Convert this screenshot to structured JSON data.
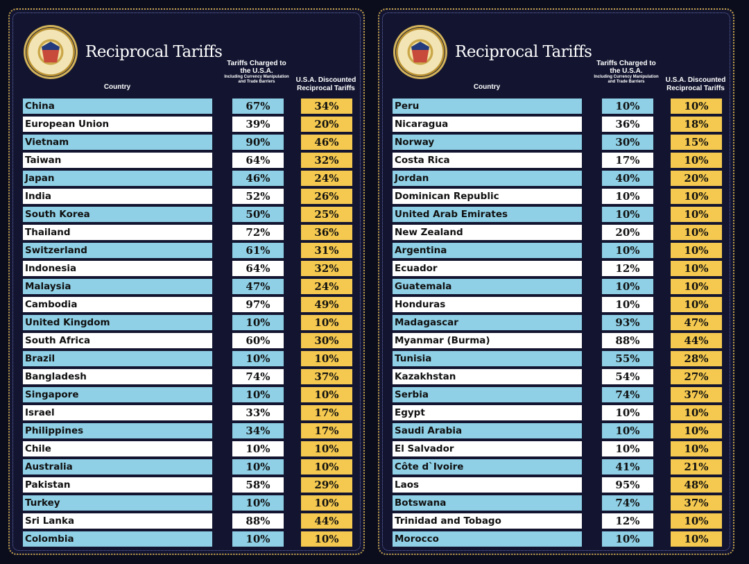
{
  "colors": {
    "background": "#0b0d1c",
    "panel": "#131530",
    "gold_border": "#c9a648",
    "blue_row": "#8fd0e6",
    "white_row": "#ffffff",
    "discount_cell": "#f5c94f"
  },
  "panels": [
    {
      "title": "Reciprocal Tariffs",
      "seal_icon": "presidential-seal",
      "headers": {
        "country": "Country",
        "charged_main": "Tariffs Charged to the U.S.A.",
        "charged_sub": "Including Currency Manipulation and Trade Barriers",
        "discounted": "U.S.A. Discounted Reciprocal Tariffs"
      },
      "rows": [
        {
          "country": "China",
          "charged": "67%",
          "discounted": "34%"
        },
        {
          "country": "European Union",
          "charged": "39%",
          "discounted": "20%"
        },
        {
          "country": "Vietnam",
          "charged": "90%",
          "discounted": "46%"
        },
        {
          "country": "Taiwan",
          "charged": "64%",
          "discounted": "32%"
        },
        {
          "country": "Japan",
          "charged": "46%",
          "discounted": "24%"
        },
        {
          "country": "India",
          "charged": "52%",
          "discounted": "26%"
        },
        {
          "country": "South Korea",
          "charged": "50%",
          "discounted": "25%"
        },
        {
          "country": "Thailand",
          "charged": "72%",
          "discounted": "36%"
        },
        {
          "country": "Switzerland",
          "charged": "61%",
          "discounted": "31%"
        },
        {
          "country": "Indonesia",
          "charged": "64%",
          "discounted": "32%"
        },
        {
          "country": "Malaysia",
          "charged": "47%",
          "discounted": "24%"
        },
        {
          "country": "Cambodia",
          "charged": "97%",
          "discounted": "49%"
        },
        {
          "country": "United Kingdom",
          "charged": "10%",
          "discounted": "10%"
        },
        {
          "country": "South Africa",
          "charged": "60%",
          "discounted": "30%"
        },
        {
          "country": "Brazil",
          "charged": "10%",
          "discounted": "10%"
        },
        {
          "country": "Bangladesh",
          "charged": "74%",
          "discounted": "37%"
        },
        {
          "country": "Singapore",
          "charged": "10%",
          "discounted": "10%"
        },
        {
          "country": "Israel",
          "charged": "33%",
          "discounted": "17%"
        },
        {
          "country": "Philippines",
          "charged": "34%",
          "discounted": "17%"
        },
        {
          "country": "Chile",
          "charged": "10%",
          "discounted": "10%"
        },
        {
          "country": "Australia",
          "charged": "10%",
          "discounted": "10%"
        },
        {
          "country": "Pakistan",
          "charged": "58%",
          "discounted": "29%"
        },
        {
          "country": "Turkey",
          "charged": "10%",
          "discounted": "10%"
        },
        {
          "country": "Sri Lanka",
          "charged": "88%",
          "discounted": "44%"
        },
        {
          "country": "Colombia",
          "charged": "10%",
          "discounted": "10%"
        }
      ]
    },
    {
      "title": "Reciprocal Tariffs",
      "seal_icon": "presidential-seal",
      "headers": {
        "country": "Country",
        "charged_main": "Tariffs Charged to the U.S.A.",
        "charged_sub": "Including Currency Manipulation and Trade Barriers",
        "discounted": "U.S.A. Discounted Reciprocal Tariffs"
      },
      "rows": [
        {
          "country": "Peru",
          "charged": "10%",
          "discounted": "10%"
        },
        {
          "country": "Nicaragua",
          "charged": "36%",
          "discounted": "18%"
        },
        {
          "country": "Norway",
          "charged": "30%",
          "discounted": "15%"
        },
        {
          "country": "Costa Rica",
          "charged": "17%",
          "discounted": "10%"
        },
        {
          "country": "Jordan",
          "charged": "40%",
          "discounted": "20%"
        },
        {
          "country": "Dominican Republic",
          "charged": "10%",
          "discounted": "10%"
        },
        {
          "country": "United Arab Emirates",
          "charged": "10%",
          "discounted": "10%"
        },
        {
          "country": "New Zealand",
          "charged": "20%",
          "discounted": "10%"
        },
        {
          "country": "Argentina",
          "charged": "10%",
          "discounted": "10%"
        },
        {
          "country": "Ecuador",
          "charged": "12%",
          "discounted": "10%"
        },
        {
          "country": "Guatemala",
          "charged": "10%",
          "discounted": "10%"
        },
        {
          "country": "Honduras",
          "charged": "10%",
          "discounted": "10%"
        },
        {
          "country": "Madagascar",
          "charged": "93%",
          "discounted": "47%"
        },
        {
          "country": "Myanmar (Burma)",
          "charged": "88%",
          "discounted": "44%"
        },
        {
          "country": "Tunisia",
          "charged": "55%",
          "discounted": "28%"
        },
        {
          "country": "Kazakhstan",
          "charged": "54%",
          "discounted": "27%"
        },
        {
          "country": "Serbia",
          "charged": "74%",
          "discounted": "37%"
        },
        {
          "country": "Egypt",
          "charged": "10%",
          "discounted": "10%"
        },
        {
          "country": "Saudi Arabia",
          "charged": "10%",
          "discounted": "10%"
        },
        {
          "country": "El Salvador",
          "charged": "10%",
          "discounted": "10%"
        },
        {
          "country": "Côte d`Ivoire",
          "charged": "41%",
          "discounted": "21%"
        },
        {
          "country": "Laos",
          "charged": "95%",
          "discounted": "48%"
        },
        {
          "country": "Botswana",
          "charged": "74%",
          "discounted": "37%"
        },
        {
          "country": "Trinidad and Tobago",
          "charged": "12%",
          "discounted": "10%"
        },
        {
          "country": "Morocco",
          "charged": "10%",
          "discounted": "10%"
        }
      ]
    }
  ],
  "chart_data": [
    {
      "type": "table",
      "title": "Reciprocal Tariffs",
      "columns": [
        "Country",
        "Tariffs Charged to the U.S.A.",
        "U.S.A. Discounted Reciprocal Tariffs"
      ],
      "categories": [
        "China",
        "European Union",
        "Vietnam",
        "Taiwan",
        "Japan",
        "India",
        "South Korea",
        "Thailand",
        "Switzerland",
        "Indonesia",
        "Malaysia",
        "Cambodia",
        "United Kingdom",
        "South Africa",
        "Brazil",
        "Bangladesh",
        "Singapore",
        "Israel",
        "Philippines",
        "Chile",
        "Australia",
        "Pakistan",
        "Turkey",
        "Sri Lanka",
        "Colombia"
      ],
      "series": [
        {
          "name": "Tariffs Charged to the U.S.A.",
          "values": [
            67,
            39,
            90,
            64,
            46,
            52,
            50,
            72,
            61,
            64,
            47,
            97,
            10,
            60,
            10,
            74,
            10,
            33,
            34,
            10,
            10,
            58,
            10,
            88,
            10
          ]
        },
        {
          "name": "U.S.A. Discounted Reciprocal Tariffs",
          "values": [
            34,
            20,
            46,
            32,
            24,
            26,
            25,
            36,
            31,
            32,
            24,
            49,
            10,
            30,
            10,
            37,
            10,
            17,
            17,
            10,
            10,
            29,
            10,
            44,
            10
          ]
        }
      ]
    },
    {
      "type": "table",
      "title": "Reciprocal Tariffs",
      "columns": [
        "Country",
        "Tariffs Charged to the U.S.A.",
        "U.S.A. Discounted Reciprocal Tariffs"
      ],
      "categories": [
        "Peru",
        "Nicaragua",
        "Norway",
        "Costa Rica",
        "Jordan",
        "Dominican Republic",
        "United Arab Emirates",
        "New Zealand",
        "Argentina",
        "Ecuador",
        "Guatemala",
        "Honduras",
        "Madagascar",
        "Myanmar (Burma)",
        "Tunisia",
        "Kazakhstan",
        "Serbia",
        "Egypt",
        "Saudi Arabia",
        "El Salvador",
        "Côte d`Ivoire",
        "Laos",
        "Botswana",
        "Trinidad and Tobago",
        "Morocco"
      ],
      "series": [
        {
          "name": "Tariffs Charged to the U.S.A.",
          "values": [
            10,
            36,
            30,
            17,
            40,
            10,
            10,
            20,
            10,
            12,
            10,
            10,
            93,
            88,
            55,
            54,
            74,
            10,
            10,
            10,
            41,
            95,
            74,
            12,
            10
          ]
        },
        {
          "name": "U.S.A. Discounted Reciprocal Tariffs",
          "values": [
            10,
            18,
            15,
            10,
            20,
            10,
            10,
            10,
            10,
            10,
            10,
            10,
            47,
            44,
            28,
            27,
            37,
            10,
            10,
            10,
            21,
            48,
            37,
            10,
            10
          ]
        }
      ]
    }
  ]
}
